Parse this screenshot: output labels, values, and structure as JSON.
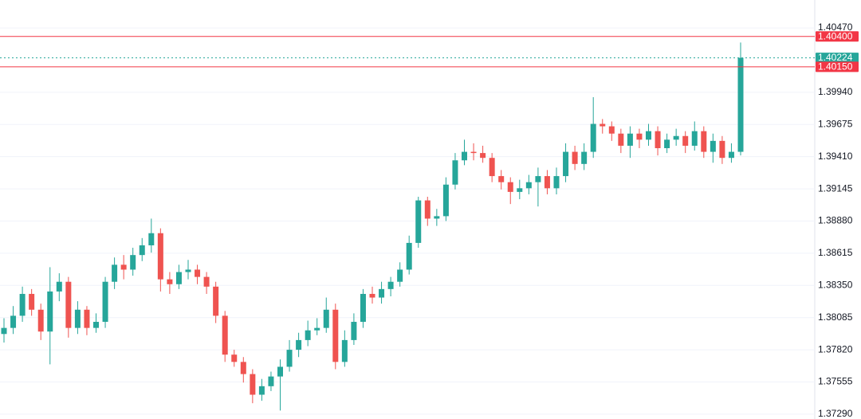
{
  "chart_data": {
    "type": "candlestick",
    "up_color": "#26a69a",
    "down_color": "#ef5350",
    "grid": true,
    "ylim": [
      1.3725,
      1.407
    ],
    "yticks": [
      {
        "value": 1.4047,
        "label": "1.40470"
      },
      {
        "value": 1.3994,
        "label": "1.39940"
      },
      {
        "value": 1.39675,
        "label": "1.39675"
      },
      {
        "value": 1.3941,
        "label": "1.39410"
      },
      {
        "value": 1.39145,
        "label": "1.39145"
      },
      {
        "value": 1.3888,
        "label": "1.38880"
      },
      {
        "value": 1.38615,
        "label": "1.38615"
      },
      {
        "value": 1.3835,
        "label": "1.38350"
      },
      {
        "value": 1.38085,
        "label": "1.38085"
      },
      {
        "value": 1.3782,
        "label": "1.37820"
      },
      {
        "value": 1.37555,
        "label": "1.37555"
      },
      {
        "value": 1.3729,
        "label": "1.37290"
      }
    ],
    "price_lines": [
      {
        "value": 1.404,
        "label": "1.40400",
        "color": "#f23645",
        "style": "solid"
      },
      {
        "value": 1.40224,
        "label": "1.40224",
        "color": "#26a69a",
        "style": "dotted"
      },
      {
        "value": 1.4015,
        "label": "1.40150",
        "color": "#f23645",
        "style": "solid"
      }
    ],
    "open": [
      1.3795,
      1.38,
      1.381,
      1.3828,
      1.3815,
      1.3797,
      1.383,
      1.3838,
      1.38,
      1.3815,
      1.38,
      1.3805,
      1.3838,
      1.3852,
      1.3848,
      1.386,
      1.3868,
      1.3878,
      1.384,
      1.3836,
      1.3846,
      1.3848,
      1.3842,
      1.3834,
      1.381,
      1.3778,
      1.3772,
      1.3762,
      1.3745,
      1.3752,
      1.376,
      1.3768,
      1.3782,
      1.379,
      1.3798,
      1.38,
      1.3815,
      1.3772,
      1.379,
      1.3805,
      1.3828,
      1.3825,
      1.3832,
      1.3838,
      1.3848,
      1.387,
      1.3905,
      1.389,
      1.3892,
      1.3918,
      1.3938,
      1.3945,
      1.3944,
      1.394,
      1.3925,
      1.392,
      1.3912,
      1.3915,
      1.392,
      1.3925,
      1.3915,
      1.3925,
      1.3945,
      1.3935,
      1.3945,
      1.3968,
      1.3966,
      1.396,
      1.395,
      1.396,
      1.3955,
      1.3962,
      1.3948,
      1.3955,
      1.3958,
      1.395,
      1.3962,
      1.3945,
      1.3954,
      1.394,
      1.3945
    ],
    "high": [
      1.3808,
      1.3818,
      1.3834,
      1.3832,
      1.382,
      1.385,
      1.3845,
      1.3842,
      1.3822,
      1.3818,
      1.3812,
      1.3842,
      1.3858,
      1.386,
      1.3866,
      1.3874,
      1.389,
      1.3882,
      1.3846,
      1.3852,
      1.3856,
      1.3852,
      1.3846,
      1.3838,
      1.3814,
      1.3782,
      1.3776,
      1.3766,
      1.3758,
      1.3764,
      1.3774,
      1.379,
      1.3796,
      1.3806,
      1.3808,
      1.3825,
      1.382,
      1.3798,
      1.3812,
      1.3832,
      1.3834,
      1.3838,
      1.3842,
      1.3854,
      1.3876,
      1.3908,
      1.3908,
      1.3898,
      1.3924,
      1.3944,
      1.3955,
      1.3952,
      1.395,
      1.3944,
      1.393,
      1.3924,
      1.3922,
      1.3926,
      1.3932,
      1.393,
      1.3932,
      1.3952,
      1.395,
      1.3952,
      1.399,
      1.3972,
      1.397,
      1.3964,
      1.3966,
      1.3964,
      1.3968,
      1.3966,
      1.396,
      1.3964,
      1.3962,
      1.397,
      1.3966,
      1.396,
      1.3958,
      1.3952,
      1.4035
    ],
    "low": [
      1.3788,
      1.3795,
      1.3805,
      1.381,
      1.379,
      1.377,
      1.3822,
      1.3792,
      1.3795,
      1.3794,
      1.3796,
      1.38,
      1.3832,
      1.384,
      1.3843,
      1.3855,
      1.3862,
      1.383,
      1.3828,
      1.3832,
      1.384,
      1.3836,
      1.3828,
      1.3804,
      1.3772,
      1.3768,
      1.3755,
      1.3738,
      1.374,
      1.3748,
      1.3732,
      1.3764,
      1.3776,
      1.3785,
      1.3794,
      1.3796,
      1.3766,
      1.3768,
      1.3786,
      1.38,
      1.382,
      1.382,
      1.3826,
      1.3834,
      1.3844,
      1.3866,
      1.3884,
      1.3884,
      1.3888,
      1.3914,
      1.3934,
      1.3938,
      1.3936,
      1.392,
      1.3914,
      1.3902,
      1.3906,
      1.391,
      1.39,
      1.391,
      1.391,
      1.392,
      1.393,
      1.393,
      1.394,
      1.396,
      1.3954,
      1.3944,
      1.394,
      1.3948,
      1.395,
      1.3942,
      1.3944,
      1.395,
      1.3944,
      1.3946,
      1.394,
      1.3936,
      1.3935,
      1.3936,
      1.3942
    ],
    "close": [
      1.38,
      1.381,
      1.3828,
      1.3815,
      1.3797,
      1.383,
      1.3838,
      1.38,
      1.3815,
      1.38,
      1.3805,
      1.3838,
      1.3852,
      1.3848,
      1.386,
      1.3868,
      1.3878,
      1.384,
      1.3836,
      1.3846,
      1.3848,
      1.3842,
      1.3834,
      1.381,
      1.3778,
      1.3772,
      1.3762,
      1.3745,
      1.3752,
      1.376,
      1.3768,
      1.3782,
      1.379,
      1.3798,
      1.38,
      1.3815,
      1.3772,
      1.379,
      1.3805,
      1.3828,
      1.3825,
      1.3832,
      1.3838,
      1.3848,
      1.387,
      1.3905,
      1.389,
      1.3892,
      1.3918,
      1.3938,
      1.3945,
      1.3944,
      1.394,
      1.3925,
      1.392,
      1.3912,
      1.3915,
      1.392,
      1.3925,
      1.3915,
      1.3925,
      1.3945,
      1.3935,
      1.3945,
      1.3968,
      1.3966,
      1.396,
      1.395,
      1.396,
      1.3955,
      1.3962,
      1.3948,
      1.3955,
      1.3958,
      1.395,
      1.3962,
      1.3945,
      1.3954,
      1.394,
      1.3945,
      1.40224
    ]
  }
}
